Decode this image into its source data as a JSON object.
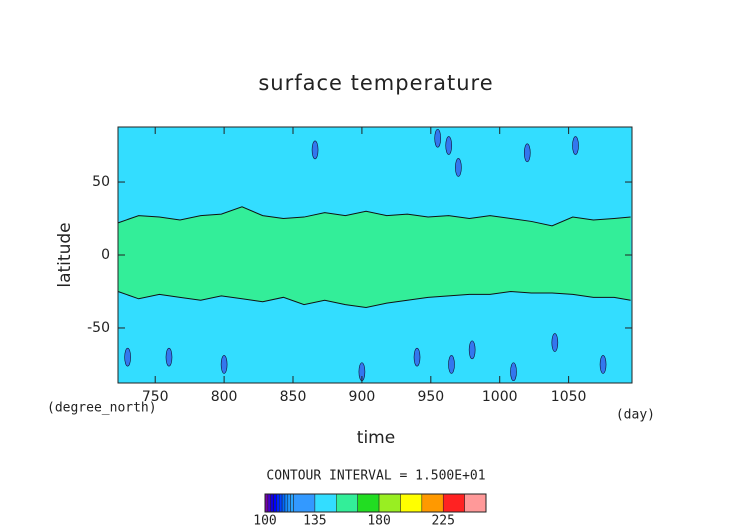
{
  "chart_data": {
    "type": "contour",
    "title": "surface temperature",
    "xlabel": "time",
    "ylabel": "latitude",
    "x_unit": "(day)",
    "y_unit": "(degree_north)",
    "xlim": [
      723,
      1096
    ],
    "ylim": [
      -87.7,
      87.7
    ],
    "xticks": [
      750,
      800,
      850,
      900,
      950,
      1000,
      1050
    ],
    "yticks": [
      -50,
      0,
      50
    ],
    "contour_interval": "CONTOUR INTERVAL = 1.500E+01",
    "background_color": "#33ddff",
    "band": {
      "color": "#33ee99",
      "x": [
        723,
        738,
        753,
        768,
        783,
        798,
        813,
        828,
        843,
        858,
        873,
        888,
        903,
        918,
        933,
        948,
        963,
        978,
        993,
        1008,
        1023,
        1038,
        1053,
        1068,
        1083,
        1095
      ],
      "north": [
        22,
        27,
        26,
        24,
        27,
        28,
        33,
        27,
        25,
        26,
        29,
        27,
        30,
        27,
        28,
        26,
        27,
        25,
        27,
        25,
        23,
        20,
        26,
        24,
        25,
        26
      ],
      "south": [
        -25,
        -30,
        -27,
        -29,
        -31,
        -28,
        -30,
        -32,
        -29,
        -34,
        -31,
        -34,
        -36,
        -33,
        -31,
        -29,
        -28,
        -27,
        -27,
        -25,
        -26,
        -26,
        -27,
        -29,
        -29,
        -31
      ]
    },
    "cells": {
      "color": "#3377ee",
      "x": [
        866,
        955,
        963,
        970,
        1020,
        1055,
        730,
        760,
        800,
        900,
        940,
        965,
        980,
        1010,
        1040,
        1075
      ],
      "y": [
        72,
        80,
        75,
        60,
        70,
        75,
        -70,
        -70,
        -75,
        -80,
        -70,
        -75,
        -65,
        -80,
        -60,
        -75
      ]
    },
    "colorbar": {
      "levels": [
        100,
        102,
        104,
        106,
        108,
        110,
        112,
        114,
        116,
        118,
        120,
        135,
        150,
        165,
        180,
        195,
        210,
        225,
        240,
        255
      ],
      "colors": [
        "#7700aa",
        "#4400cc",
        "#1100dd",
        "#0000ff",
        "#0022ff",
        "#0044ff",
        "#0066ff",
        "#1188ff",
        "#2299ff",
        "#2aa5ff",
        "#3399ff",
        "#33ddff",
        "#33ee99",
        "#22dd22",
        "#99ee22",
        "#ffff00",
        "#ff9900",
        "#ff2222",
        "#ff9999"
      ],
      "ticks": [
        100,
        135,
        180,
        225
      ]
    }
  }
}
